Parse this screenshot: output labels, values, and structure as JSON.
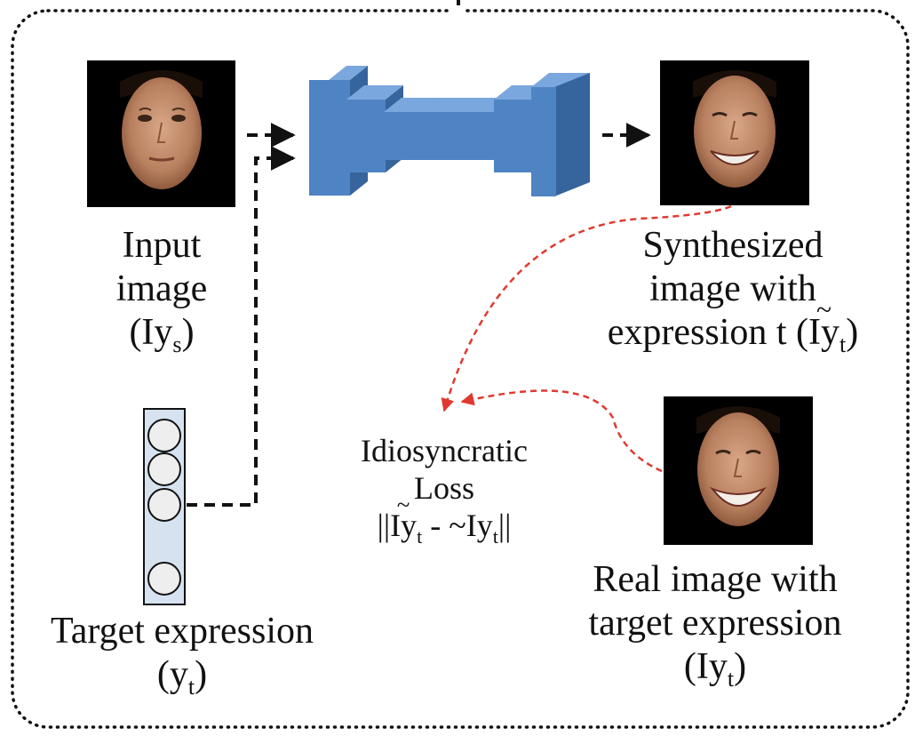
{
  "labels": {
    "input_image": {
      "line1": "Input",
      "line2": "image",
      "symbol": "(Iy",
      "sub": "s",
      "close": ")"
    },
    "synthesized": {
      "line1": "Synthesized",
      "line2": "image with",
      "line3_prefix": "expression t (",
      "symbol": "Iy",
      "sub": "t",
      "close": ")"
    },
    "loss": {
      "line1": "Idiosyncratic",
      "line2": "Loss",
      "open": "||",
      "symbol1": "Iy",
      "sub1": "t",
      "mid": " - ~Iy",
      "sub2": "t",
      "close": "||"
    },
    "real_image": {
      "line1": "Real image with",
      "line2": "target expression",
      "symbol": "(Iy",
      "sub": "t",
      "close": ")"
    },
    "target_expression": {
      "line1": "Target expression",
      "symbol": "(y",
      "sub": "t",
      "close": ")"
    }
  },
  "colors": {
    "network_front": "#4f84c4",
    "network_top": "#7aa7dd",
    "network_side": "#36649c",
    "vector_fill": "#d6e2f0",
    "node_fill": "#eeeeee",
    "loss_arrow": "#e03a2f",
    "flow_arrow": "#111111"
  },
  "icons": [
    "input-face-image",
    "synthesized-face-image",
    "real-face-image",
    "encoder-decoder-network-icon",
    "expression-vector-icon"
  ]
}
